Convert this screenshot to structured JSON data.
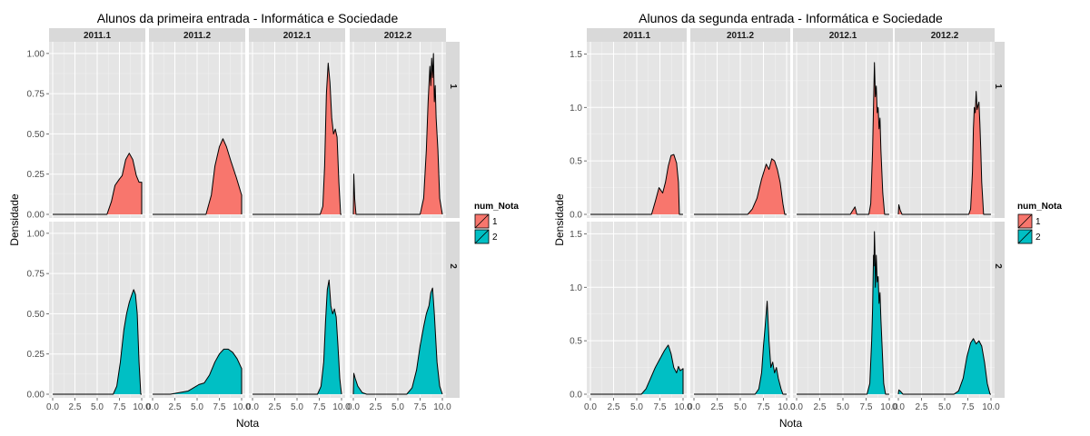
{
  "chart_data": [
    {
      "type": "area",
      "title": "Alunos da primeira entrada -  Informática e Sociedade",
      "xlabel": "Nota",
      "ylabel": "Densidade",
      "xlim": [
        0,
        10
      ],
      "ylim": [
        0,
        1.05
      ],
      "x_ticks": [
        "0.0",
        "2.5",
        "5.0",
        "7.5",
        "10.0"
      ],
      "y_ticks": [
        "0.00",
        "0.25",
        "0.50",
        "0.75",
        "1.00"
      ],
      "y_tick_values": [
        0,
        0.25,
        0.5,
        0.75,
        1.0
      ],
      "columns": [
        "2011.1",
        "2011.2",
        "2012.1",
        "2012.2"
      ],
      "rows": [
        "1",
        "2"
      ],
      "legend": {
        "title": "num_Nota",
        "entries": [
          "1",
          "2"
        ],
        "colors": [
          "#f8766d",
          "#00bfc4"
        ]
      },
      "panels": [
        [
          {
            "x": [
              6.1,
              6.6,
              7.0,
              7.5,
              7.8,
              8.2,
              8.6,
              9.0,
              9.4,
              9.7,
              10.0
            ],
            "y": [
              0,
              0.08,
              0.18,
              0.22,
              0.24,
              0.34,
              0.38,
              0.34,
              0.24,
              0.2,
              0.2
            ]
          },
          {
            "x": [
              6.0,
              6.6,
              7.0,
              7.5,
              7.9,
              8.3,
              8.8,
              9.4,
              10.0
            ],
            "y": [
              0,
              0.12,
              0.3,
              0.42,
              0.47,
              0.42,
              0.33,
              0.23,
              0.12
            ]
          },
          {
            "x": [
              7.6,
              7.9,
              8.1,
              8.3,
              8.5,
              8.7,
              8.9,
              9.1,
              9.3,
              9.5,
              9.7,
              9.9
            ],
            "y": [
              0,
              0.05,
              0.3,
              0.75,
              0.94,
              0.82,
              0.6,
              0.5,
              0.53,
              0.48,
              0.2,
              0
            ]
          },
          {
            "x": [
              0,
              0.05,
              0.15,
              0.3,
              7.5,
              7.9,
              8.2,
              8.4,
              8.6,
              8.7,
              8.8,
              8.9,
              9.0,
              9.1,
              9.2,
              9.3,
              9.5,
              9.7,
              10.0
            ],
            "y": [
              0,
              0.25,
              0.1,
              0,
              0,
              0.1,
              0.4,
              0.7,
              0.92,
              0.8,
              0.97,
              0.85,
              1.0,
              0.7,
              0.8,
              0.6,
              0.4,
              0.1,
              0
            ]
          }
        ],
        [
          {
            "x": [
              6.8,
              7.2,
              7.6,
              8.0,
              8.3,
              8.6,
              8.9,
              9.1,
              9.3,
              9.5,
              9.7,
              9.9
            ],
            "y": [
              0,
              0.05,
              0.2,
              0.4,
              0.5,
              0.57,
              0.62,
              0.65,
              0.62,
              0.5,
              0.2,
              0
            ]
          },
          {
            "x": [
              2.0,
              3.0,
              4.0,
              4.6,
              5.2,
              5.8,
              6.4,
              7.0,
              7.5,
              8.0,
              8.5,
              9.0,
              9.5,
              10.0
            ],
            "y": [
              0,
              0.01,
              0.02,
              0.04,
              0.06,
              0.07,
              0.12,
              0.2,
              0.25,
              0.28,
              0.28,
              0.26,
              0.22,
              0.16
            ]
          },
          {
            "x": [
              7.3,
              7.7,
              8.0,
              8.2,
              8.4,
              8.6,
              8.8,
              9.0,
              9.2,
              9.4,
              9.6,
              9.8,
              10.0
            ],
            "y": [
              0,
              0.05,
              0.2,
              0.45,
              0.65,
              0.71,
              0.55,
              0.5,
              0.53,
              0.48,
              0.3,
              0.1,
              0
            ]
          },
          {
            "x": [
              0,
              0.05,
              0.2,
              0.5,
              1.0,
              1.5,
              6.0,
              6.6,
              7.1,
              7.5,
              7.9,
              8.2,
              8.5,
              8.7,
              8.9,
              9.1,
              9.4,
              9.7,
              10.0
            ],
            "y": [
              0,
              0.13,
              0.1,
              0.05,
              0.01,
              0,
              0,
              0.04,
              0.15,
              0.3,
              0.42,
              0.5,
              0.55,
              0.63,
              0.66,
              0.5,
              0.2,
              0.05,
              0
            ]
          }
        ]
      ]
    },
    {
      "type": "area",
      "title": "Alunos da segunda entrada -  Informática e Sociedade",
      "xlabel": "Nota",
      "ylabel": "Densidade",
      "xlim": [
        0,
        10
      ],
      "ylim": [
        0,
        1.58
      ],
      "x_ticks": [
        "0.0",
        "2.5",
        "5.0",
        "7.5",
        "10.0"
      ],
      "y_ticks": [
        "0.0",
        "0.5",
        "1.0",
        "1.5"
      ],
      "y_tick_values": [
        0,
        0.5,
        1.0,
        1.5
      ],
      "columns": [
        "2011.1",
        "2011.2",
        "2012.1",
        "2012.2"
      ],
      "rows": [
        "1",
        "2"
      ],
      "legend": {
        "title": "num_Nota",
        "entries": [
          "1",
          "2"
        ],
        "colors": [
          "#f8766d",
          "#00bfc4"
        ]
      },
      "panels": [
        [
          {
            "x": [
              6.6,
              7.0,
              7.4,
              7.8,
              8.1,
              8.4,
              8.7,
              9.0,
              9.3,
              9.5,
              9.6
            ],
            "y": [
              0,
              0.12,
              0.25,
              0.2,
              0.3,
              0.45,
              0.55,
              0.56,
              0.48,
              0.3,
              0
            ]
          },
          {
            "x": [
              5.8,
              6.3,
              6.8,
              7.3,
              7.8,
              8.1,
              8.4,
              8.7,
              9.0,
              9.3,
              9.6,
              9.8
            ],
            "y": [
              0,
              0.05,
              0.15,
              0.33,
              0.47,
              0.42,
              0.52,
              0.5,
              0.42,
              0.3,
              0.1,
              0
            ]
          },
          {
            "x": [
              5.8,
              6.0,
              6.3,
              6.5,
              7.8,
              8.0,
              8.2,
              8.4,
              8.5,
              8.6,
              8.7,
              8.8,
              8.9,
              9.0,
              9.1,
              9.3,
              9.5
            ],
            "y": [
              0,
              0.03,
              0.07,
              0,
              0,
              0.1,
              0.6,
              1.42,
              1.1,
              1.2,
              0.95,
              1.0,
              0.8,
              0.9,
              0.6,
              0.2,
              0
            ]
          },
          {
            "x": [
              0,
              0.05,
              0.2,
              0.4,
              7.6,
              7.8,
              8.0,
              8.1,
              8.2,
              8.3,
              8.4,
              8.5,
              8.6,
              8.7,
              8.8,
              8.9,
              9.0,
              9.2
            ],
            "y": [
              0,
              0.09,
              0.04,
              0,
              0,
              0.05,
              0.4,
              0.8,
              1.0,
              0.95,
              1.15,
              0.98,
              1.02,
              1.05,
              0.85,
              0.6,
              0.3,
              0
            ]
          }
        ],
        [
          {
            "x": [
              5.5,
              6.0,
              6.5,
              7.0,
              7.5,
              8.0,
              8.4,
              8.7,
              9.0,
              9.3,
              9.5,
              9.7,
              10.0
            ],
            "y": [
              0,
              0.05,
              0.15,
              0.25,
              0.33,
              0.41,
              0.46,
              0.38,
              0.25,
              0.2,
              0.26,
              0.22,
              0.24
            ]
          },
          {
            "x": [
              6.6,
              7.0,
              7.3,
              7.5,
              7.7,
              7.9,
              8.1,
              8.3,
              8.5,
              8.7,
              8.9,
              9.1,
              9.4,
              9.6
            ],
            "y": [
              0,
              0.05,
              0.2,
              0.45,
              0.65,
              0.87,
              0.5,
              0.25,
              0.3,
              0.2,
              0.25,
              0.15,
              0.05,
              0
            ]
          },
          {
            "x": [
              7.6,
              7.9,
              8.1,
              8.2,
              8.3,
              8.35,
              8.4,
              8.45,
              8.5,
              8.6,
              8.7,
              8.8,
              8.9,
              9.0,
              9.1,
              9.2,
              9.3,
              9.4,
              9.6
            ],
            "y": [
              0,
              0.1,
              0.5,
              0.8,
              1.3,
              1.2,
              1.52,
              1.35,
              1.0,
              1.3,
              1.05,
              1.1,
              0.85,
              0.95,
              0.7,
              0.5,
              0.3,
              0.1,
              0
            ]
          },
          {
            "x": [
              0,
              0.05,
              0.2,
              0.5,
              6.0,
              6.5,
              7.0,
              7.4,
              7.8,
              8.1,
              8.4,
              8.7,
              9.0,
              9.3,
              9.6,
              9.9
            ],
            "y": [
              0,
              0.04,
              0.03,
              0,
              0,
              0.03,
              0.15,
              0.35,
              0.48,
              0.52,
              0.47,
              0.5,
              0.45,
              0.3,
              0.1,
              0
            ]
          }
        ]
      ]
    }
  ]
}
